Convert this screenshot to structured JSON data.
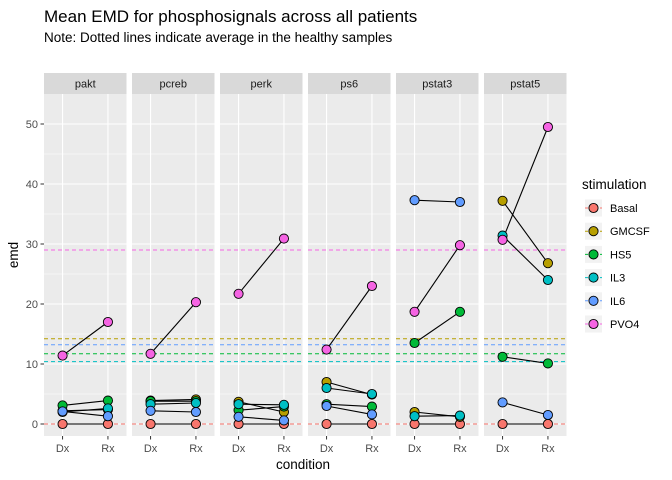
{
  "chart_data": {
    "type": "line",
    "title": "Mean EMD for phosphosignals across all patients",
    "subtitle": "Note: Dotted lines indicate average in the healthy samples",
    "xlabel": "condition",
    "ylabel": "emd",
    "categories": [
      "Dx",
      "Rx"
    ],
    "ylim": [
      -2,
      55
    ],
    "yticks": [
      0,
      10,
      20,
      30,
      40,
      50
    ],
    "grid": true,
    "legend": {
      "title": "stimulation",
      "position": "right"
    },
    "stimulations": [
      {
        "name": "Basal",
        "color": "#F8766D"
      },
      {
        "name": "GMCSF",
        "color": "#B79F00"
      },
      {
        "name": "HS5",
        "color": "#00BA38"
      },
      {
        "name": "IL3",
        "color": "#00BFC4"
      },
      {
        "name": "IL6",
        "color": "#619CFF"
      },
      {
        "name": "PVO4",
        "color": "#F564E3"
      }
    ],
    "healthy_average": {
      "Basal": 0.0,
      "GMCSF": 14.2,
      "HS5": 11.7,
      "IL3": 10.4,
      "IL6": 13.2,
      "PVO4": 29.0
    },
    "panels": [
      {
        "name": "pakt",
        "series": [
          {
            "name": "Basal",
            "values": [
              0.0,
              0.0
            ]
          },
          {
            "name": "GMCSF",
            "values": [
              2.2,
              2.4
            ]
          },
          {
            "name": "HS5",
            "values": [
              3.1,
              3.9
            ]
          },
          {
            "name": "IL3",
            "values": [
              2.0,
              2.6
            ]
          },
          {
            "name": "IL6",
            "values": [
              2.1,
              1.3
            ]
          },
          {
            "name": "PVO4",
            "values": [
              11.4,
              17.0
            ]
          }
        ]
      },
      {
        "name": "pcreb",
        "series": [
          {
            "name": "Basal",
            "values": [
              0.0,
              0.0
            ]
          },
          {
            "name": "GMCSF",
            "values": [
              3.9,
              4.1
            ]
          },
          {
            "name": "HS5",
            "values": [
              3.8,
              3.8
            ]
          },
          {
            "name": "IL3",
            "values": [
              3.3,
              3.5
            ]
          },
          {
            "name": "IL6",
            "values": [
              2.2,
              2.0
            ]
          },
          {
            "name": "PVO4",
            "values": [
              11.7,
              20.3
            ]
          }
        ]
      },
      {
        "name": "perk",
        "series": [
          {
            "name": "Basal",
            "values": [
              0.0,
              0.0
            ]
          },
          {
            "name": "GMCSF",
            "values": [
              3.7,
              2.0
            ]
          },
          {
            "name": "HS5",
            "values": [
              2.3,
              2.9
            ]
          },
          {
            "name": "IL3",
            "values": [
              3.3,
              3.2
            ]
          },
          {
            "name": "IL6",
            "values": [
              1.2,
              0.6
            ]
          },
          {
            "name": "PVO4",
            "values": [
              21.7,
              30.9
            ]
          }
        ]
      },
      {
        "name": "ps6",
        "series": [
          {
            "name": "Basal",
            "values": [
              0.0,
              0.0
            ]
          },
          {
            "name": "GMCSF",
            "values": [
              7.0,
              4.9
            ]
          },
          {
            "name": "HS5",
            "values": [
              3.3,
              2.9
            ]
          },
          {
            "name": "IL3",
            "values": [
              6.0,
              5.0
            ]
          },
          {
            "name": "IL6",
            "values": [
              3.0,
              1.6
            ]
          },
          {
            "name": "PVO4",
            "values": [
              12.4,
              23.0
            ]
          }
        ]
      },
      {
        "name": "pstat3",
        "series": [
          {
            "name": "Basal",
            "values": [
              0.0,
              0.0
            ]
          },
          {
            "name": "GMCSF",
            "values": [
              2.0,
              1.2
            ]
          },
          {
            "name": "HS5",
            "values": [
              13.5,
              18.7
            ]
          },
          {
            "name": "IL3",
            "values": [
              1.3,
              1.4
            ]
          },
          {
            "name": "IL6",
            "values": [
              37.3,
              37.0
            ]
          },
          {
            "name": "PVO4",
            "values": [
              18.7,
              29.8
            ]
          }
        ]
      },
      {
        "name": "pstat5",
        "series": [
          {
            "name": "Basal",
            "values": [
              0.0,
              0.0
            ]
          },
          {
            "name": "GMCSF",
            "values": [
              37.2,
              26.8
            ]
          },
          {
            "name": "HS5",
            "values": [
              11.2,
              10.1
            ]
          },
          {
            "name": "IL3",
            "values": [
              31.4,
              24.0
            ]
          },
          {
            "name": "IL6",
            "values": [
              3.6,
              1.5
            ]
          },
          {
            "name": "PVO4",
            "values": [
              30.7,
              49.5
            ]
          }
        ]
      }
    ]
  }
}
